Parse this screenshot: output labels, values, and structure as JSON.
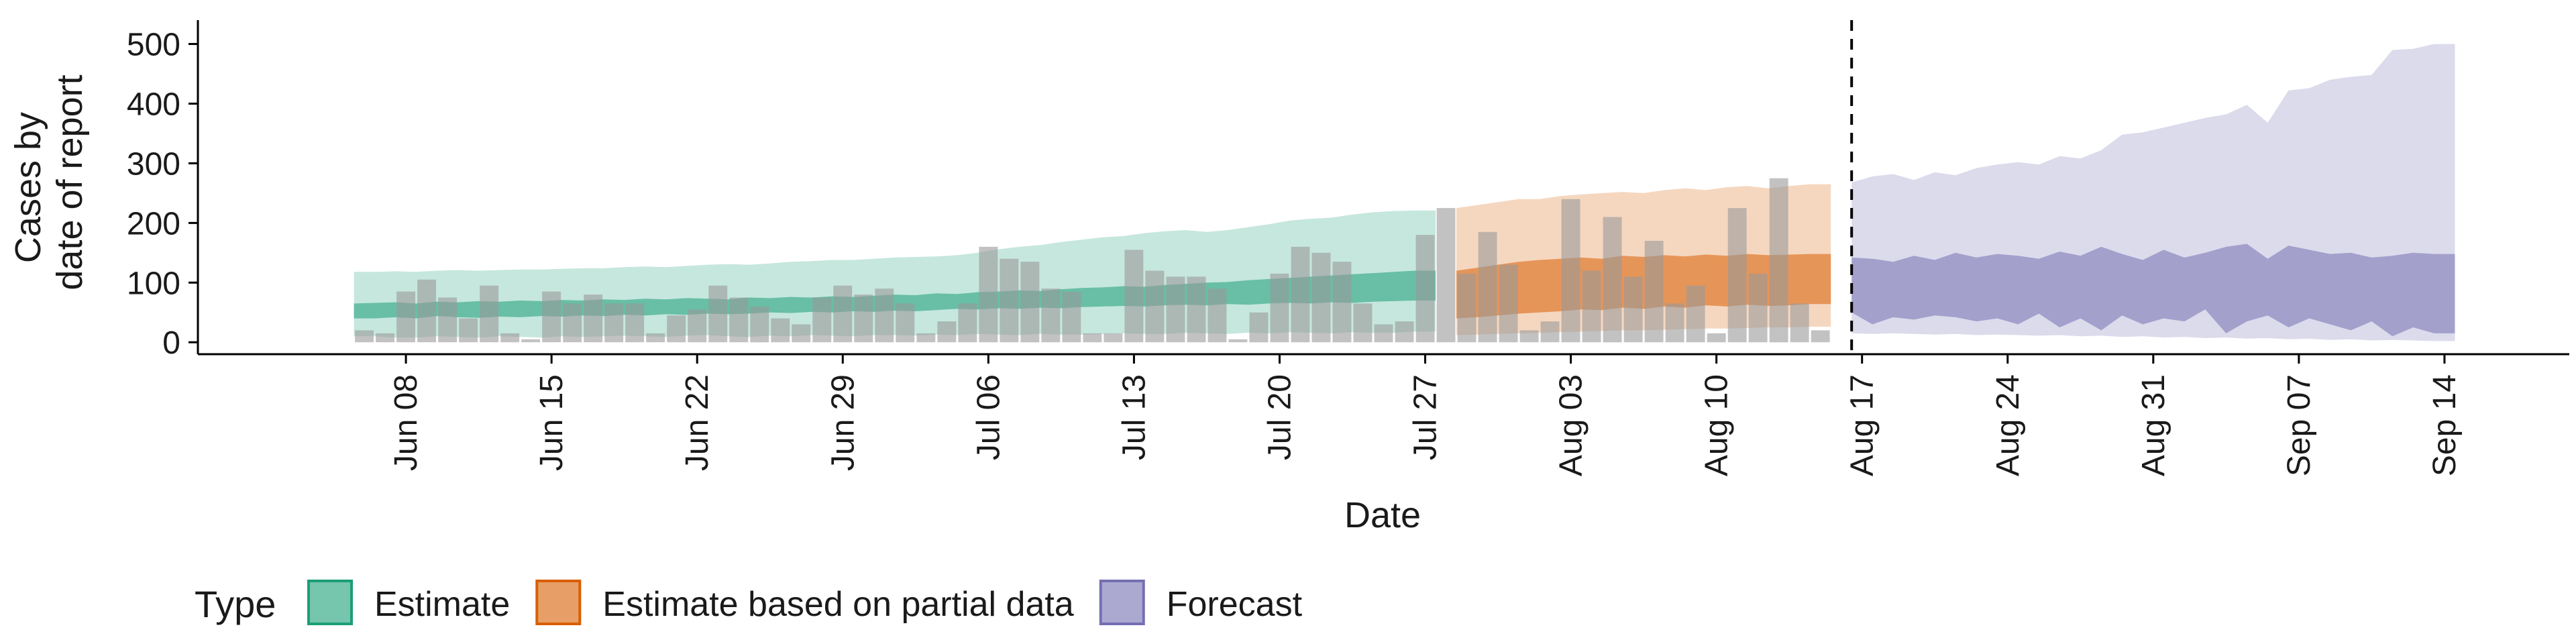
{
  "chart_data": {
    "type": "area",
    "title": "",
    "xlabel": "Date",
    "ylabel": [
      "Cases by",
      "date of report"
    ],
    "ylim": [
      -20,
      540
    ],
    "yticks": [
      0,
      100,
      200,
      300,
      400,
      500
    ],
    "x_tick_labels": [
      "Jun 08",
      "Jun 15",
      "Jun 22",
      "Jun 29",
      "Jul 06",
      "Jul 13",
      "Jul 20",
      "Jul 27",
      "Aug 03",
      "Aug 10",
      "Aug 17",
      "Aug 24",
      "Aug 31",
      "Sep 07",
      "Sep 14"
    ],
    "x_tick_dates": [
      "2020-06-08",
      "2020-06-15",
      "2020-06-22",
      "2020-06-29",
      "2020-07-06",
      "2020-07-13",
      "2020-07-20",
      "2020-07-27",
      "2020-08-03",
      "2020-08-10",
      "2020-08-17",
      "2020-08-24",
      "2020-08-31",
      "2020-09-07",
      "2020-09-14"
    ],
    "xlim": [
      "2020-05-29",
      "2020-09-20"
    ],
    "forecast_date": "2020-08-16",
    "grid": false,
    "legend": {
      "title": "Type",
      "position": "bottom",
      "entries": [
        {
          "label": "Estimate",
          "color": "#1b9e77"
        },
        {
          "label": "Estimate based on partial data",
          "color": "#d95f02"
        },
        {
          "label": "Forecast",
          "color": "#7570b3"
        }
      ]
    },
    "reported_cases": {
      "start": "2020-06-06",
      "color": "#999999",
      "values": [
        20,
        15,
        85,
        105,
        75,
        40,
        95,
        15,
        5,
        85,
        65,
        80,
        65,
        65,
        15,
        45,
        55,
        95,
        75,
        60,
        40,
        30,
        75,
        95,
        80,
        90,
        65,
        15,
        35,
        65,
        160,
        140,
        135,
        90,
        85,
        15,
        15,
        155,
        120,
        110,
        110,
        90,
        5,
        50,
        115,
        160,
        150,
        135,
        65,
        30,
        35,
        180,
        225,
        115,
        185,
        130,
        20,
        35,
        240,
        120,
        210,
        110,
        170,
        65,
        95,
        15,
        225,
        115,
        275,
        65,
        20
      ]
    },
    "series": [
      {
        "name": "Estimate",
        "start": "2020-06-06",
        "color": "#1b9e77",
        "outer_low": [
          10,
          10,
          8,
          8,
          10,
          9,
          8,
          10,
          9,
          8,
          10,
          9,
          10,
          11,
          10,
          9,
          11,
          12,
          10,
          9,
          11,
          10,
          12,
          11,
          10,
          12,
          12,
          11,
          13,
          12,
          14,
          13,
          12,
          14,
          13,
          13,
          14,
          15,
          14,
          14,
          16,
          15,
          14,
          16,
          15,
          17,
          16,
          15,
          17,
          16,
          16,
          18
        ],
        "outer_high": [
          118,
          118,
          119,
          118,
          120,
          121,
          120,
          121,
          122,
          122,
          123,
          124,
          124,
          126,
          127,
          126,
          128,
          130,
          131,
          130,
          132,
          135,
          136,
          138,
          138,
          140,
          142,
          143,
          144,
          146,
          150,
          156,
          160,
          163,
          168,
          172,
          176,
          178,
          183,
          186,
          188,
          185,
          188,
          193,
          198,
          204,
          207,
          209,
          214,
          218,
          220,
          221
        ],
        "inner_low": [
          40,
          40,
          42,
          40,
          44,
          42,
          41,
          43,
          42,
          44,
          43,
          45,
          44,
          46,
          45,
          47,
          46,
          48,
          47,
          48,
          50,
          49,
          51,
          50,
          52,
          51,
          53,
          52,
          54,
          56,
          55,
          57,
          56,
          58,
          57,
          59,
          60,
          61,
          60,
          62,
          63,
          62,
          64,
          63,
          65,
          66,
          65,
          67,
          66,
          68,
          69,
          70
        ],
        "inner_high": [
          65,
          66,
          67,
          65,
          68,
          67,
          69,
          68,
          70,
          69,
          71,
          70,
          72,
          71,
          73,
          72,
          74,
          73,
          72,
          75,
          74,
          76,
          75,
          77,
          76,
          78,
          80,
          79,
          82,
          81,
          84,
          85,
          87,
          86,
          89,
          91,
          92,
          94,
          93,
          96,
          98,
          100,
          101,
          104,
          106,
          108,
          110,
          112,
          114,
          116,
          118,
          120
        ]
      },
      {
        "name": "Estimate based on partial data",
        "start": "2020-07-29",
        "color": "#d95f02",
        "outer_low": [
          12,
          13,
          14,
          15,
          16,
          17,
          18,
          19,
          20,
          20,
          21,
          22,
          23,
          23,
          24,
          25,
          25,
          26
        ],
        "outer_high": [
          225,
          230,
          235,
          240,
          240,
          245,
          248,
          250,
          252,
          250,
          255,
          258,
          255,
          260,
          262,
          258,
          262,
          265
        ],
        "inner_low": [
          40,
          42,
          45,
          48,
          50,
          52,
          55,
          54,
          58,
          56,
          60,
          58,
          62,
          60,
          63,
          61,
          62,
          64
        ],
        "inner_high": [
          120,
          125,
          130,
          135,
          138,
          140,
          142,
          140,
          145,
          143,
          146,
          144,
          147,
          145,
          148,
          146,
          147,
          148
        ]
      },
      {
        "name": "Forecast",
        "start": "2020-08-17",
        "color": "#7570b3",
        "outer_low": [
          15,
          14,
          15,
          14,
          13,
          14,
          12,
          13,
          12,
          11,
          12,
          10,
          11,
          9,
          10,
          8,
          9,
          7,
          8,
          6,
          7,
          5,
          6,
          4,
          5,
          3,
          4,
          3,
          2
        ],
        "outer_high": [
          268,
          278,
          282,
          272,
          285,
          280,
          292,
          298,
          302,
          298,
          312,
          308,
          322,
          348,
          352,
          360,
          368,
          376,
          382,
          398,
          368,
          422,
          426,
          440,
          445,
          448,
          490,
          492,
          500
        ],
        "inner_low": [
          50,
          30,
          42,
          38,
          45,
          42,
          35,
          40,
          30,
          48,
          25,
          40,
          20,
          45,
          30,
          40,
          35,
          55,
          15,
          35,
          45,
          25,
          40,
          30,
          20,
          35,
          10,
          25,
          15
        ],
        "inner_high": [
          142,
          140,
          135,
          145,
          138,
          150,
          142,
          148,
          145,
          140,
          152,
          145,
          160,
          148,
          138,
          155,
          142,
          150,
          160,
          165,
          140,
          162,
          155,
          148,
          150,
          142,
          145,
          150,
          148
        ]
      }
    ]
  }
}
